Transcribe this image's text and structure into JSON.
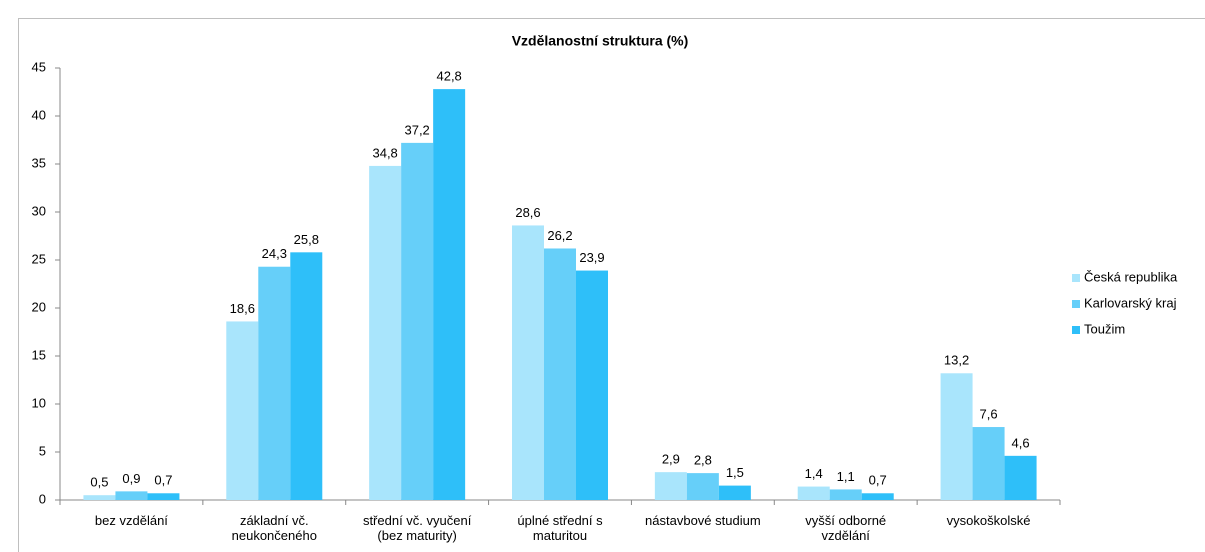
{
  "chart_data": {
    "type": "bar",
    "title": "Vzdělanostní struktura (%)",
    "categories": [
      "bez vzdělání",
      "základní vč. neukončeného",
      "střední vč. vyučení (bez maturity)",
      "úplné střední s maturitou",
      "nástavbové studium",
      "vyšší odborné vzdělání",
      "vysokoškolské"
    ],
    "series": [
      {
        "name": "Česká republika",
        "color": "#a9e5fc",
        "values": [
          0.5,
          18.6,
          34.8,
          28.6,
          2.9,
          1.4,
          13.2
        ],
        "value_labels": [
          "0,5",
          "18,6",
          "34,8",
          "28,6",
          "2,9",
          "1,4",
          "13,2"
        ]
      },
      {
        "name": "Karlovarský kraj",
        "color": "#66cff9",
        "values": [
          0.9,
          24.3,
          37.2,
          26.2,
          2.8,
          1.1,
          7.6
        ],
        "value_labels": [
          "0,9",
          "24,3",
          "37,2",
          "26,2",
          "2,8",
          "1,1",
          "7,6"
        ]
      },
      {
        "name": "Toužim",
        "color": "#2ebff9",
        "values": [
          0.7,
          25.8,
          42.8,
          23.9,
          1.5,
          0.7,
          4.6
        ],
        "value_labels": [
          "0,7",
          "25,8",
          "42,8",
          "23,9",
          "1,5",
          "0,7",
          "4,6"
        ]
      }
    ],
    "ylim": [
      0,
      45
    ],
    "yticks": [
      0,
      5,
      10,
      15,
      20,
      25,
      30,
      35,
      40,
      45
    ],
    "grid": false,
    "legend": "right"
  }
}
